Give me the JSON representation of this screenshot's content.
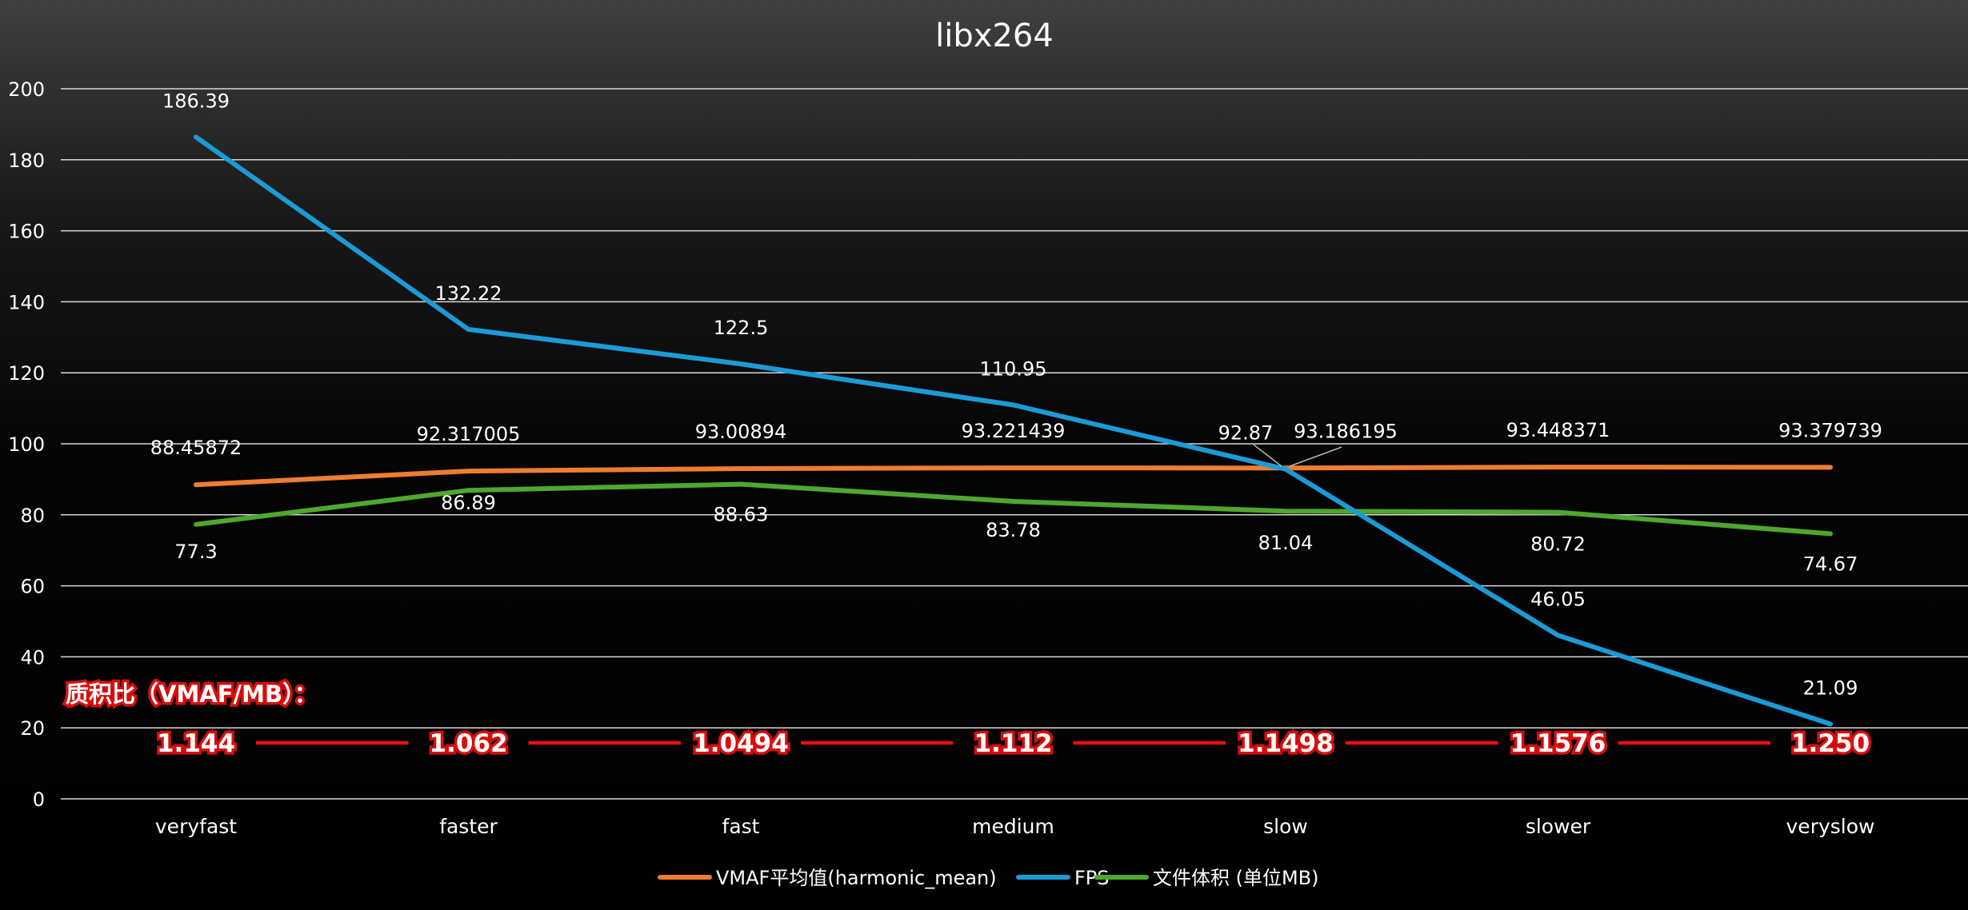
{
  "chart_data": {
    "type": "line",
    "title": "libx264",
    "categories": [
      "veryfast",
      "faster",
      "fast",
      "medium",
      "slow",
      "slower",
      "veryslow"
    ],
    "ylim": [
      0,
      200
    ],
    "yticks": [
      0,
      20,
      40,
      60,
      80,
      100,
      120,
      140,
      160,
      180,
      200
    ],
    "grid": true,
    "legend_position": "bottom",
    "series": [
      {
        "name": "VMAF平均值(harmonic_mean)",
        "color": "#ed7d31",
        "values": [
          88.45872,
          92.317005,
          93.00894,
          93.221439,
          93.186195,
          93.448371,
          93.379739
        ],
        "labels": [
          "88.45872",
          "92.317005",
          "93.00894",
          "93.221439",
          "93.186195",
          "93.448371",
          "93.379739"
        ]
      },
      {
        "name": "FPS",
        "color": "#1b9bd6",
        "values": [
          186.39,
          132.22,
          122.5,
          110.95,
          92.87,
          46.05,
          21.09
        ],
        "labels": [
          "186.39",
          "132.22",
          "122.5",
          "110.95",
          "92.87",
          "46.05",
          "21.09"
        ]
      },
      {
        "name": "文件体积 (单位MB)",
        "color": "#4ea72e",
        "values": [
          77.3,
          86.89,
          88.63,
          83.78,
          81.04,
          80.72,
          74.67
        ],
        "labels": [
          "77.3",
          "86.89",
          "88.63",
          "83.78",
          "81.04",
          "80.72",
          "74.67"
        ]
      }
    ],
    "annotation": {
      "title": "质积比（VMAF/MB）：",
      "values": [
        "1.144",
        "1.062",
        "1.0494",
        "1.112",
        "1.1498",
        "1.1576",
        "1.250"
      ],
      "line_color": "#e81010"
    }
  }
}
